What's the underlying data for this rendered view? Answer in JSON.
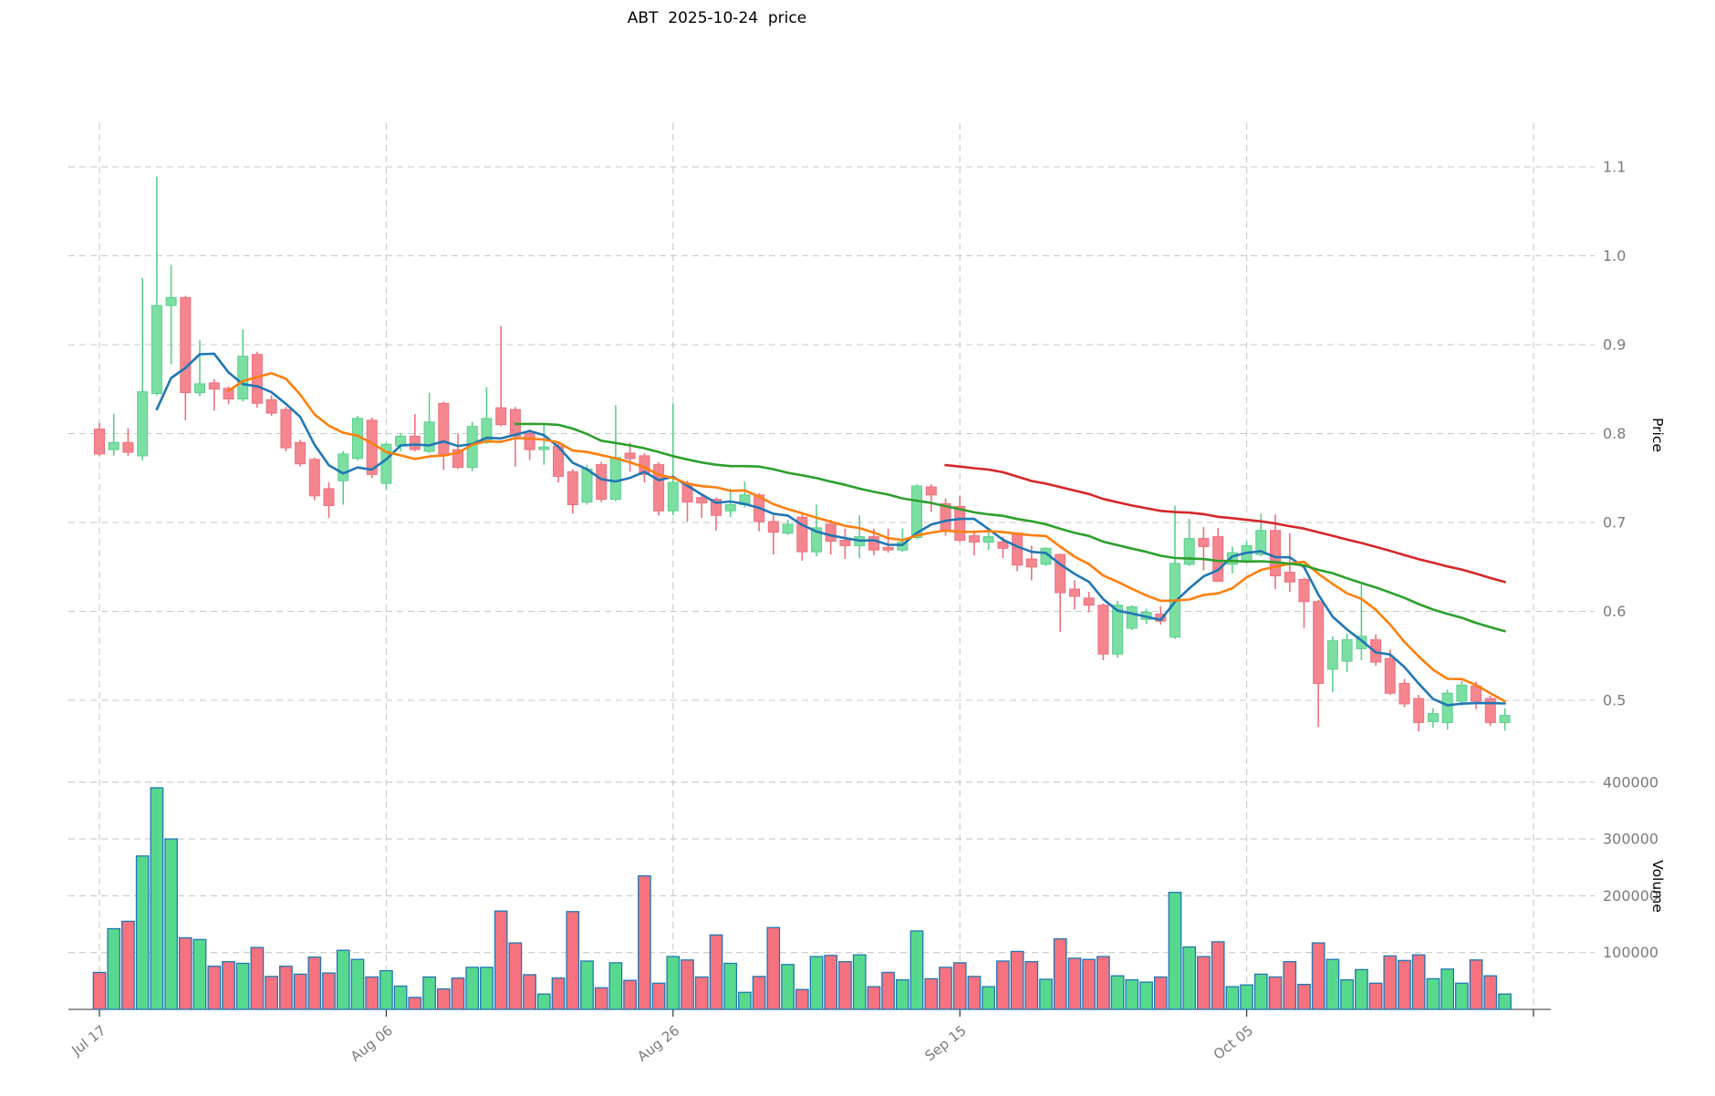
{
  "title": "ABT  2025-10-24  price",
  "price_axis": {
    "label": "Price",
    "ticks": [
      "1.1",
      "1.0",
      "0.9",
      "0.8",
      "0.7",
      "0.6",
      "0.5"
    ],
    "tick_values": [
      1.1,
      1.0,
      0.9,
      0.8,
      0.7,
      0.6,
      0.5
    ]
  },
  "volume_axis": {
    "label": "Volume",
    "ticks": [
      "400000",
      "300000",
      "200000",
      "100000"
    ],
    "tick_values": [
      400000,
      300000,
      200000,
      100000
    ]
  },
  "x_axis": {
    "tick_labels": [
      "Jul 17",
      "Aug 06",
      "Aug 26",
      "Sep 15",
      "Oct 05"
    ],
    "tick_days": [
      0,
      20,
      40,
      60,
      80
    ],
    "extra_gridline_days": [
      100
    ]
  },
  "colors": {
    "up_body": "#7CDFA2",
    "up_edge": "#5BCE8E",
    "down_body": "#F5868F",
    "down_edge": "#EF6F7C",
    "vol_up": "#57D98D",
    "vol_down": "#F6727F",
    "vol_edge": "#1F77B4",
    "ma5": "#1F77B4",
    "ma10": "#FF7F0E",
    "ma30": "#2CA02C",
    "ma60": "#D62728",
    "grid": "#C9C9C9",
    "tick_text": "#7A7A7A",
    "axis_text": "#000000",
    "spine": "#333333"
  },
  "chart_data": {
    "type": "candlestick+volume",
    "symbol": "ABT",
    "as_of_date": "2025-10-24",
    "title": "ABT  2025-10-24  price",
    "ylabel_price": "Price",
    "ylabel_volume": "Volume",
    "price_range": [
      0.45,
      1.12
    ],
    "volume_range": [
      0,
      420000
    ],
    "grid": true,
    "moving_averages": [
      {
        "name": "MA5",
        "window": 5,
        "color_key": "ma5"
      },
      {
        "name": "MA10",
        "window": 10,
        "color_key": "ma10"
      },
      {
        "name": "MA30",
        "window": 30,
        "color_key": "ma30"
      },
      {
        "name": "MA60",
        "window": 60,
        "color_key": "ma60"
      }
    ],
    "dates": [
      "2025-07-17",
      "2025-07-18",
      "2025-07-19",
      "2025-07-20",
      "2025-07-21",
      "2025-07-22",
      "2025-07-23",
      "2025-07-24",
      "2025-07-25",
      "2025-07-26",
      "2025-07-27",
      "2025-07-28",
      "2025-07-29",
      "2025-07-30",
      "2025-07-31",
      "2025-08-01",
      "2025-08-02",
      "2025-08-03",
      "2025-08-04",
      "2025-08-05",
      "2025-08-06",
      "2025-08-07",
      "2025-08-08",
      "2025-08-09",
      "2025-08-10",
      "2025-08-11",
      "2025-08-12",
      "2025-08-13",
      "2025-08-14",
      "2025-08-15",
      "2025-08-16",
      "2025-08-17",
      "2025-08-18",
      "2025-08-19",
      "2025-08-20",
      "2025-08-21",
      "2025-08-22",
      "2025-08-23",
      "2025-08-24",
      "2025-08-25",
      "2025-08-26",
      "2025-08-27",
      "2025-08-28",
      "2025-08-29",
      "2025-08-30",
      "2025-08-31",
      "2025-09-01",
      "2025-09-02",
      "2025-09-03",
      "2025-09-04",
      "2025-09-05",
      "2025-09-06",
      "2025-09-07",
      "2025-09-08",
      "2025-09-09",
      "2025-09-10",
      "2025-09-11",
      "2025-09-12",
      "2025-09-13",
      "2025-09-14",
      "2025-09-15",
      "2025-09-16",
      "2025-09-17",
      "2025-09-18",
      "2025-09-19",
      "2025-09-20",
      "2025-09-21",
      "2025-09-22",
      "2025-09-23",
      "2025-09-24",
      "2025-09-25",
      "2025-09-26",
      "2025-09-27",
      "2025-09-28",
      "2025-09-29",
      "2025-09-30",
      "2025-10-01",
      "2025-10-02",
      "2025-10-03",
      "2025-10-04",
      "2025-10-05",
      "2025-10-06",
      "2025-10-07",
      "2025-10-08",
      "2025-10-09",
      "2025-10-10",
      "2025-10-11",
      "2025-10-12",
      "2025-10-13",
      "2025-10-14",
      "2025-10-15",
      "2025-10-16",
      "2025-10-17",
      "2025-10-18",
      "2025-10-19",
      "2025-10-20",
      "2025-10-21",
      "2025-10-22",
      "2025-10-23"
    ],
    "ohlcv": [
      [
        0.805,
        0.812,
        0.775,
        0.777,
        65000
      ],
      [
        0.782,
        0.822,
        0.775,
        0.79,
        142000
      ],
      [
        0.79,
        0.806,
        0.775,
        0.779,
        155000
      ],
      [
        0.775,
        0.975,
        0.77,
        0.847,
        270000
      ],
      [
        0.845,
        1.089,
        0.843,
        0.944,
        390000
      ],
      [
        0.944,
        0.99,
        0.878,
        0.953,
        300000
      ],
      [
        0.953,
        0.955,
        0.815,
        0.846,
        126000
      ],
      [
        0.846,
        0.905,
        0.842,
        0.856,
        123000
      ],
      [
        0.857,
        0.861,
        0.826,
        0.85,
        76000
      ],
      [
        0.851,
        0.853,
        0.833,
        0.839,
        84000
      ],
      [
        0.839,
        0.917,
        0.836,
        0.887,
        81000
      ],
      [
        0.889,
        0.892,
        0.829,
        0.834,
        109000
      ],
      [
        0.838,
        0.843,
        0.82,
        0.823,
        58000
      ],
      [
        0.827,
        0.83,
        0.78,
        0.784,
        76000
      ],
      [
        0.79,
        0.793,
        0.763,
        0.766,
        62000
      ],
      [
        0.771,
        0.773,
        0.725,
        0.73,
        92000
      ],
      [
        0.738,
        0.745,
        0.705,
        0.719,
        64000
      ],
      [
        0.747,
        0.78,
        0.72,
        0.777,
        104000
      ],
      [
        0.772,
        0.82,
        0.77,
        0.817,
        88000
      ],
      [
        0.815,
        0.818,
        0.75,
        0.754,
        57000
      ],
      [
        0.744,
        0.79,
        0.737,
        0.788,
        68000
      ],
      [
        0.786,
        0.8,
        0.78,
        0.797,
        41000
      ],
      [
        0.797,
        0.822,
        0.78,
        0.782,
        21000
      ],
      [
        0.78,
        0.846,
        0.778,
        0.813,
        57000
      ],
      [
        0.834,
        0.836,
        0.759,
        0.776,
        36000
      ],
      [
        0.782,
        0.8,
        0.76,
        0.762,
        55000
      ],
      [
        0.762,
        0.813,
        0.758,
        0.808,
        74000
      ],
      [
        0.79,
        0.852,
        0.788,
        0.817,
        74000
      ],
      [
        0.829,
        0.921,
        0.808,
        0.81,
        173000
      ],
      [
        0.827,
        0.83,
        0.763,
        0.797,
        117000
      ],
      [
        0.8,
        0.805,
        0.77,
        0.782,
        61000
      ],
      [
        0.782,
        0.81,
        0.765,
        0.785,
        27000
      ],
      [
        0.786,
        0.79,
        0.745,
        0.752,
        55000
      ],
      [
        0.757,
        0.76,
        0.71,
        0.72,
        172000
      ],
      [
        0.723,
        0.765,
        0.72,
        0.76,
        85000
      ],
      [
        0.765,
        0.768,
        0.723,
        0.726,
        38000
      ],
      [
        0.726,
        0.832,
        0.724,
        0.773,
        82000
      ],
      [
        0.778,
        0.79,
        0.757,
        0.772,
        51000
      ],
      [
        0.775,
        0.778,
        0.745,
        0.754,
        235000
      ],
      [
        0.765,
        0.768,
        0.708,
        0.713,
        46000
      ],
      [
        0.713,
        0.834,
        0.708,
        0.745,
        93000
      ],
      [
        0.743,
        0.747,
        0.701,
        0.723,
        87000
      ],
      [
        0.728,
        0.731,
        0.705,
        0.722,
        57000
      ],
      [
        0.726,
        0.728,
        0.691,
        0.708,
        131000
      ],
      [
        0.713,
        0.738,
        0.706,
        0.72,
        81000
      ],
      [
        0.72,
        0.746,
        0.717,
        0.731,
        30000
      ],
      [
        0.731,
        0.733,
        0.69,
        0.701,
        58000
      ],
      [
        0.701,
        0.708,
        0.664,
        0.689,
        144000
      ],
      [
        0.688,
        0.703,
        0.686,
        0.698,
        79000
      ],
      [
        0.706,
        0.709,
        0.657,
        0.667,
        35000
      ],
      [
        0.667,
        0.72,
        0.662,
        0.694,
        93000
      ],
      [
        0.698,
        0.703,
        0.664,
        0.679,
        95000
      ],
      [
        0.68,
        0.693,
        0.659,
        0.674,
        84000
      ],
      [
        0.674,
        0.708,
        0.66,
        0.684,
        96000
      ],
      [
        0.684,
        0.693,
        0.663,
        0.669,
        40000
      ],
      [
        0.672,
        0.693,
        0.666,
        0.669,
        65000
      ],
      [
        0.669,
        0.693,
        0.667,
        0.678,
        52000
      ],
      [
        0.683,
        0.743,
        0.681,
        0.741,
        138000
      ],
      [
        0.74,
        0.743,
        0.712,
        0.731,
        54000
      ],
      [
        0.721,
        0.727,
        0.685,
        0.69,
        74000
      ],
      [
        0.718,
        0.73,
        0.678,
        0.68,
        82000
      ],
      [
        0.685,
        0.691,
        0.663,
        0.678,
        58000
      ],
      [
        0.678,
        0.694,
        0.669,
        0.684,
        40000
      ],
      [
        0.678,
        0.684,
        0.66,
        0.671,
        85000
      ],
      [
        0.688,
        0.689,
        0.645,
        0.652,
        102000
      ],
      [
        0.659,
        0.674,
        0.635,
        0.65,
        84000
      ],
      [
        0.653,
        0.672,
        0.651,
        0.671,
        53000
      ],
      [
        0.664,
        0.665,
        0.577,
        0.621,
        124000
      ],
      [
        0.625,
        0.635,
        0.602,
        0.617,
        90000
      ],
      [
        0.615,
        0.622,
        0.599,
        0.607,
        88000
      ],
      [
        0.607,
        0.609,
        0.545,
        0.552,
        93000
      ],
      [
        0.552,
        0.612,
        0.548,
        0.607,
        59000
      ],
      [
        0.581,
        0.607,
        0.579,
        0.605,
        52000
      ],
      [
        0.591,
        0.603,
        0.586,
        0.599,
        48000
      ],
      [
        0.597,
        0.606,
        0.585,
        0.589,
        57000
      ],
      [
        0.571,
        0.719,
        0.569,
        0.654,
        206000
      ],
      [
        0.653,
        0.704,
        0.651,
        0.682,
        110000
      ],
      [
        0.682,
        0.695,
        0.646,
        0.673,
        93000
      ],
      [
        0.684,
        0.694,
        0.633,
        0.634,
        119000
      ],
      [
        0.653,
        0.673,
        0.643,
        0.666,
        40000
      ],
      [
        0.657,
        0.679,
        0.655,
        0.674,
        43000
      ],
      [
        0.664,
        0.71,
        0.662,
        0.691,
        62000
      ],
      [
        0.691,
        0.709,
        0.625,
        0.64,
        57000
      ],
      [
        0.644,
        0.688,
        0.622,
        0.633,
        84000
      ],
      [
        0.636,
        0.638,
        0.581,
        0.611,
        44000
      ],
      [
        0.611,
        0.613,
        0.47,
        0.519,
        117000
      ],
      [
        0.535,
        0.572,
        0.509,
        0.567,
        88000
      ],
      [
        0.544,
        0.575,
        0.532,
        0.568,
        52000
      ],
      [
        0.558,
        0.63,
        0.545,
        0.572,
        70000
      ],
      [
        0.568,
        0.574,
        0.539,
        0.543,
        46000
      ],
      [
        0.547,
        0.557,
        0.506,
        0.508,
        94000
      ],
      [
        0.519,
        0.524,
        0.492,
        0.496,
        86000
      ],
      [
        0.502,
        0.506,
        0.465,
        0.475,
        96000
      ],
      [
        0.476,
        0.491,
        0.469,
        0.485,
        54000
      ],
      [
        0.475,
        0.512,
        0.467,
        0.508,
        71000
      ],
      [
        0.499,
        0.522,
        0.494,
        0.517,
        46000
      ],
      [
        0.516,
        0.521,
        0.49,
        0.499,
        87000
      ],
      [
        0.502,
        0.505,
        0.471,
        0.475,
        59000
      ],
      [
        0.475,
        0.491,
        0.466,
        0.483,
        27000
      ]
    ]
  }
}
